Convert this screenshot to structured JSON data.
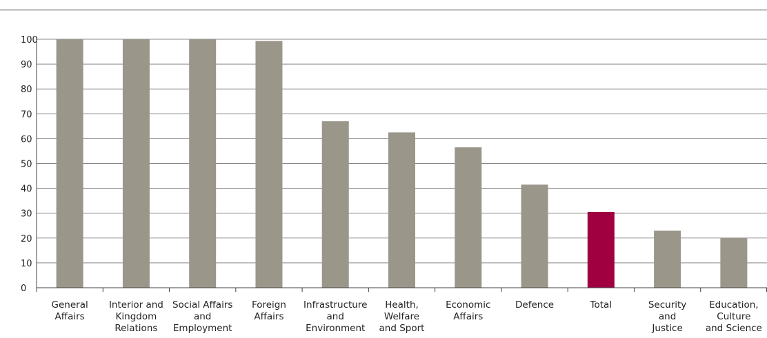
{
  "chart_data": {
    "type": "bar",
    "categories": [
      [
        "General",
        "Affairs"
      ],
      [
        "Interior and",
        "Kingdom",
        "Relations"
      ],
      [
        "Social Affairs",
        "and",
        "Employment"
      ],
      [
        "Foreign",
        "Affairs"
      ],
      [
        "Infrastructure",
        "and",
        "Environment"
      ],
      [
        "Health,",
        "Welfare",
        "and Sport"
      ],
      [
        "Economic",
        "Affairs"
      ],
      [
        "Defence"
      ],
      [
        "Total"
      ],
      [
        "Security",
        "and",
        "Justice"
      ],
      [
        "Education,",
        "Culture",
        "and Science"
      ]
    ],
    "values": [
      100,
      100,
      100,
      99.3,
      67,
      62.5,
      56.5,
      41.5,
      30.5,
      23,
      20
    ],
    "highlight_index": 8,
    "ylim": [
      0,
      100
    ],
    "yticks": [
      0,
      10,
      20,
      30,
      40,
      50,
      60,
      70,
      80,
      90,
      100
    ],
    "grid": true,
    "legend": "none",
    "title": "",
    "xlabel": "",
    "ylabel": "",
    "colors": {
      "bar": "#9a968a",
      "highlight": "#a00040",
      "grid": "#888888",
      "axis": "#444444"
    }
  }
}
